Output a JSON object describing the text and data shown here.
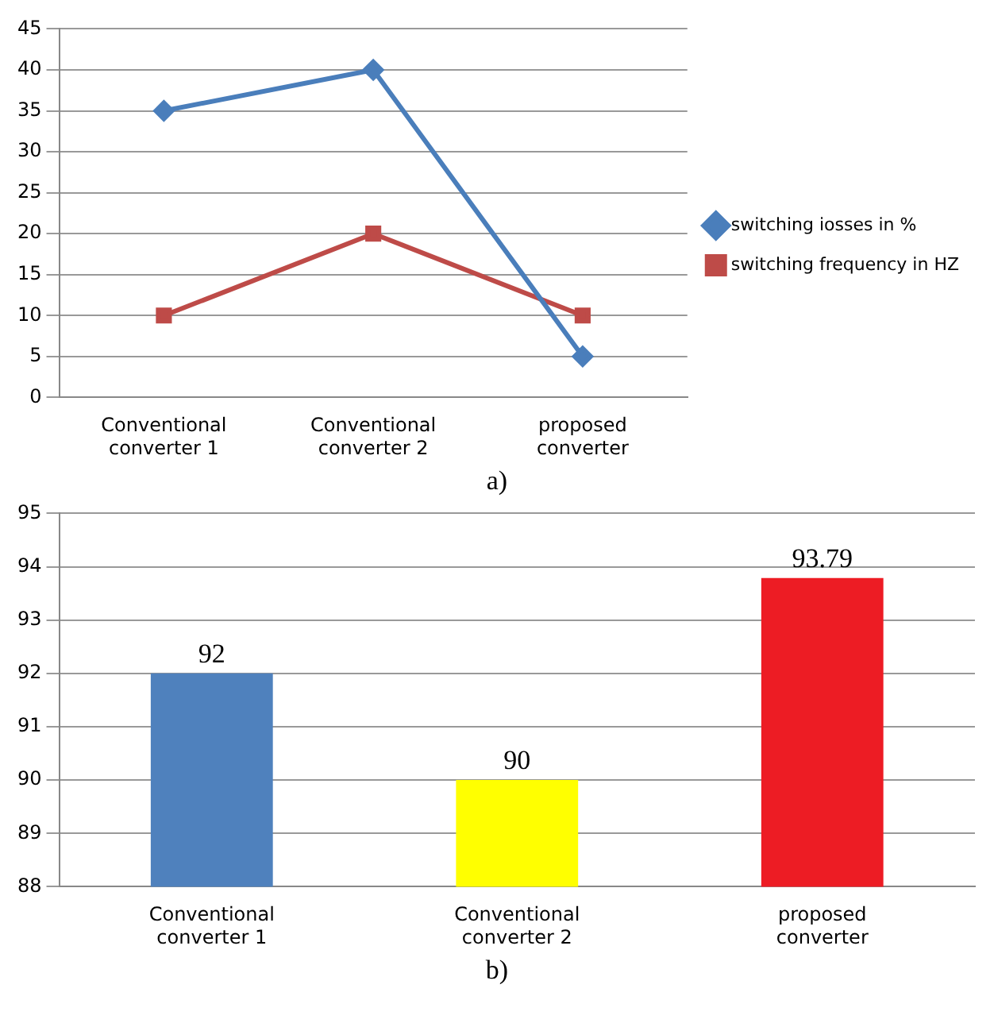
{
  "chart_data": [
    {
      "type": "line",
      "categories": [
        "Conventional converter 1",
        "Conventional converter 2",
        "proposed converter"
      ],
      "series": [
        {
          "name": "switching iosses in %",
          "color": "#4a7ebb",
          "values": [
            35,
            40,
            5
          ],
          "marker": "diamond"
        },
        {
          "name": "switching frequency in HZ",
          "color": "#be4b48",
          "values": [
            10,
            20,
            10
          ],
          "marker": "square"
        }
      ],
      "ylim": [
        0,
        45
      ],
      "yticks": [
        0,
        5,
        10,
        15,
        20,
        25,
        30,
        35,
        40,
        45
      ],
      "grid": "y",
      "legend": "right",
      "annotations": [
        "a)"
      ]
    },
    {
      "type": "bar",
      "categories": [
        "Conventional converter 1",
        "Conventional converter 2",
        "proposed converter"
      ],
      "values": [
        92,
        90,
        93.79
      ],
      "colors": [
        "#4f81bd",
        "#ffff00",
        "#ed1c24"
      ],
      "ylim": [
        88,
        95
      ],
      "yticks": [
        88,
        89,
        90,
        91,
        92,
        93,
        94,
        95
      ],
      "grid": "y",
      "data_labels": true,
      "annotations": [
        "b)"
      ]
    }
  ]
}
